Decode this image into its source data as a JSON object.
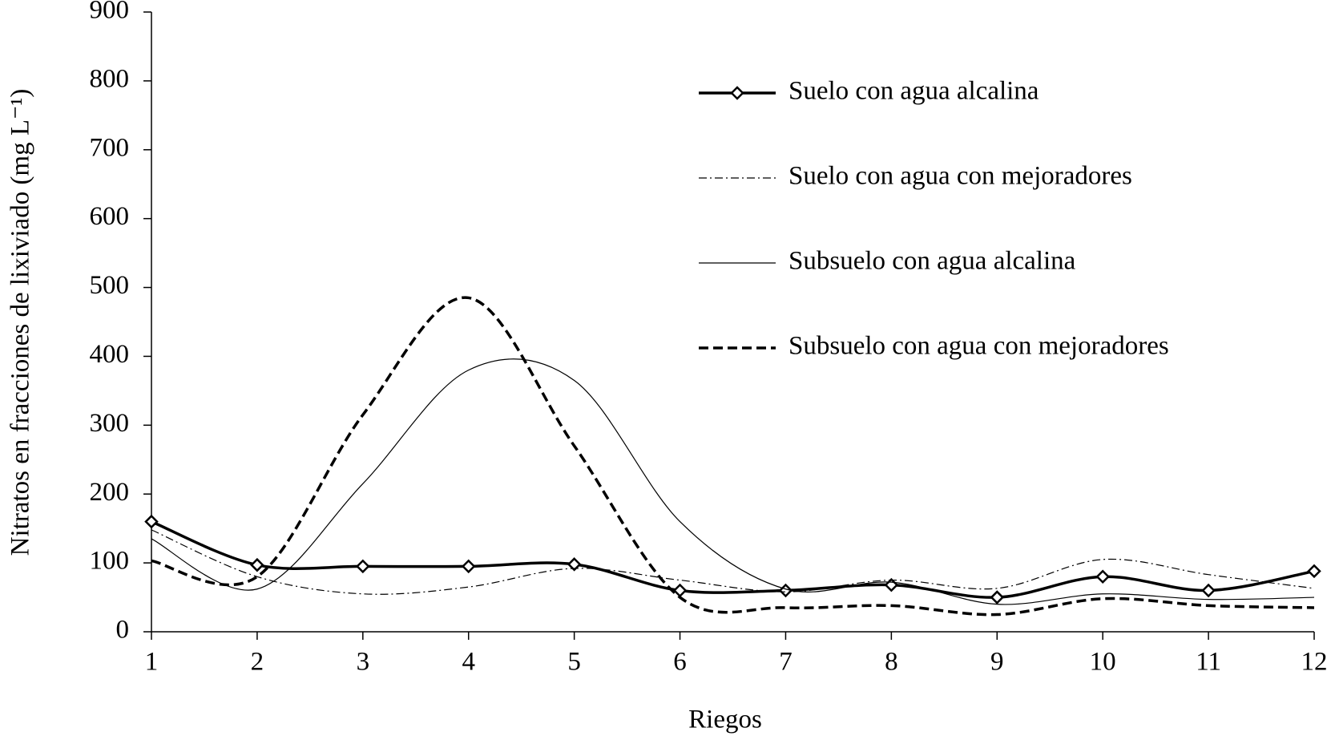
{
  "chart_data": {
    "type": "line",
    "x_label": "Riegos",
    "y_label": "Nitratos en fracciones de lixiviado (mg L⁻¹)",
    "x": [
      1,
      2,
      3,
      4,
      5,
      6,
      7,
      8,
      9,
      10,
      11,
      12
    ],
    "xlim": [
      1,
      12
    ],
    "xticks": [
      1,
      2,
      3,
      4,
      5,
      6,
      7,
      8,
      9,
      10,
      11,
      12
    ],
    "ylim": [
      0,
      900
    ],
    "yticks": [
      0,
      100,
      200,
      300,
      400,
      500,
      600,
      700,
      800,
      900
    ],
    "legend": "upper right",
    "series": [
      {
        "name": "Suelo  con agua alcalina",
        "color": "#000000",
        "line_style": "solid",
        "line_width": 3.5,
        "marker": "diamond",
        "values": [
          160,
          97,
          95,
          95,
          98,
          60,
          60,
          68,
          50,
          80,
          60,
          88
        ]
      },
      {
        "name": "Suelo con agua con mejoradores",
        "color": "#000000",
        "line_style": "dashdot",
        "line_width": 1.2,
        "marker": null,
        "values": [
          148,
          80,
          55,
          65,
          92,
          75,
          58,
          75,
          63,
          105,
          83,
          63
        ]
      },
      {
        "name": "Subsuelo con agua alcalina",
        "color": "#000000",
        "line_style": "solid",
        "line_width": 1.2,
        "marker": null,
        "values": [
          135,
          62,
          215,
          380,
          365,
          160,
          62,
          72,
          40,
          55,
          47,
          50
        ]
      },
      {
        "name": "Subsuelo con agua con mejoradores",
        "color": "#000000",
        "line_style": "dashed",
        "line_width": 3.5,
        "marker": null,
        "values": [
          103,
          80,
          315,
          485,
          270,
          50,
          35,
          38,
          25,
          48,
          38,
          35
        ]
      }
    ]
  }
}
